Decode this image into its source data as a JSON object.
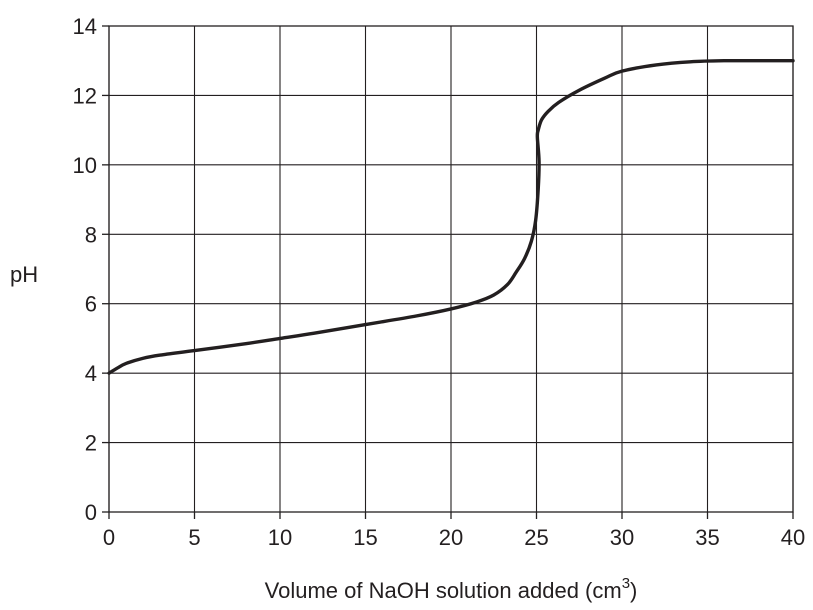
{
  "chart_data": {
    "type": "line",
    "title": "",
    "xlabel": "Volume of NaOH solution added (cm",
    "xlabel_superscript": "3",
    "xlabel_suffix": ")",
    "ylabel": "pH",
    "xlim": [
      0,
      40
    ],
    "ylim": [
      0,
      14
    ],
    "x_ticks": [
      0,
      5,
      10,
      15,
      20,
      25,
      30,
      35,
      40
    ],
    "y_ticks": [
      0,
      2,
      4,
      6,
      8,
      10,
      12,
      14
    ],
    "grid": true,
    "line_color": "#231f20",
    "series": [
      {
        "x": [
          0,
          0.5,
          1,
          2,
          3,
          5,
          8,
          10,
          12,
          15,
          18,
          20,
          21.5,
          22.5,
          23.3,
          23.8,
          24.3,
          24.7,
          24.95,
          25.1,
          25.15,
          25.05,
          25.1,
          25.3,
          25.7,
          26.3,
          27.5,
          29,
          30,
          32,
          34,
          36,
          38,
          40
        ],
        "y": [
          4.0,
          4.15,
          4.28,
          4.43,
          4.52,
          4.65,
          4.85,
          5.0,
          5.15,
          5.4,
          5.65,
          5.85,
          6.05,
          6.25,
          6.55,
          6.9,
          7.3,
          7.8,
          8.4,
          9.3,
          10.1,
          10.8,
          11.0,
          11.3,
          11.55,
          11.8,
          12.15,
          12.5,
          12.7,
          12.88,
          12.97,
          13.0,
          13.0,
          13.0
        ]
      }
    ]
  }
}
